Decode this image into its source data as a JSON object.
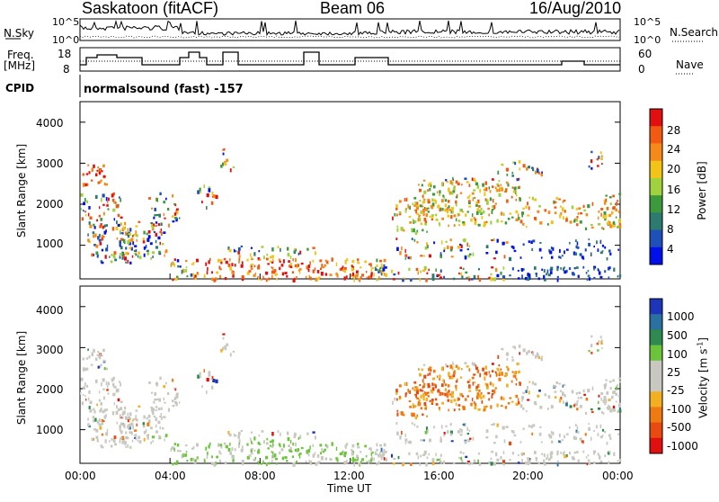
{
  "header": {
    "title_left": "Saskatoon (fitACF)",
    "title_center": "Beam 06",
    "title_right": "16/Aug/2010"
  },
  "strip": {
    "nsky_label": "N.Sky",
    "nsky_ticks": [
      "10^5",
      "10^0"
    ],
    "nsearch_ticks": [
      "10^5",
      "10^0"
    ],
    "nsearch_label": "N.Search",
    "freq_label": "Freq.",
    "freq_unit": "[MHz]",
    "freq_ticks": [
      "18",
      "8"
    ],
    "nave_ticks": [
      "60",
      "0"
    ],
    "nave_label": "Nave",
    "cpid_label": "CPID",
    "cpid_text": "normalsound (fast) -157"
  },
  "chart_data": [
    {
      "type": "heatmap",
      "panel": "power",
      "ylabel": "Slant Range [km]",
      "y_ticks": [
        "1000",
        "2000",
        "3000",
        "4000"
      ],
      "ylim": [
        180,
        4500
      ],
      "colorbar_label": "Power [dB]",
      "colorbar_ticks": [
        "4",
        "8",
        "12",
        "16",
        "20",
        "24",
        "28"
      ],
      "colorbar_range": [
        0,
        30
      ],
      "colorbar_colors": [
        "#0010e8",
        "#1f4fb8",
        "#2d7a6e",
        "#3c9a3c",
        "#9fd23c",
        "#f2c418",
        "#f5891a",
        "#f25a12",
        "#e01010"
      ]
    },
    {
      "type": "heatmap",
      "panel": "velocity",
      "ylabel": "Slant Range [km]",
      "y_ticks": [
        "1000",
        "2000",
        "3000",
        "4000"
      ],
      "ylim": [
        180,
        4500
      ],
      "colorbar_label": "Velocity [m s",
      "colorbar_label_sup": "-1",
      "colorbar_label_end": "]",
      "colorbar_ticks": [
        "1000",
        "500",
        "100",
        "25",
        "-25",
        "-100",
        "-500",
        "-1000"
      ],
      "colorbar_colors": [
        "#1d36b8",
        "#2a70a0",
        "#2e8a4e",
        "#6cc43a",
        "#c8c8c0",
        "#c8c8c0",
        "#f2b020",
        "#f07a12",
        "#e84a10",
        "#e01010"
      ],
      "xlabel": "Time UT",
      "x_ticks": [
        "00:00",
        "04:00",
        "08:00",
        "12:00",
        "16:00",
        "20:00",
        "00:00"
      ],
      "xlim": [
        0,
        24
      ]
    }
  ]
}
